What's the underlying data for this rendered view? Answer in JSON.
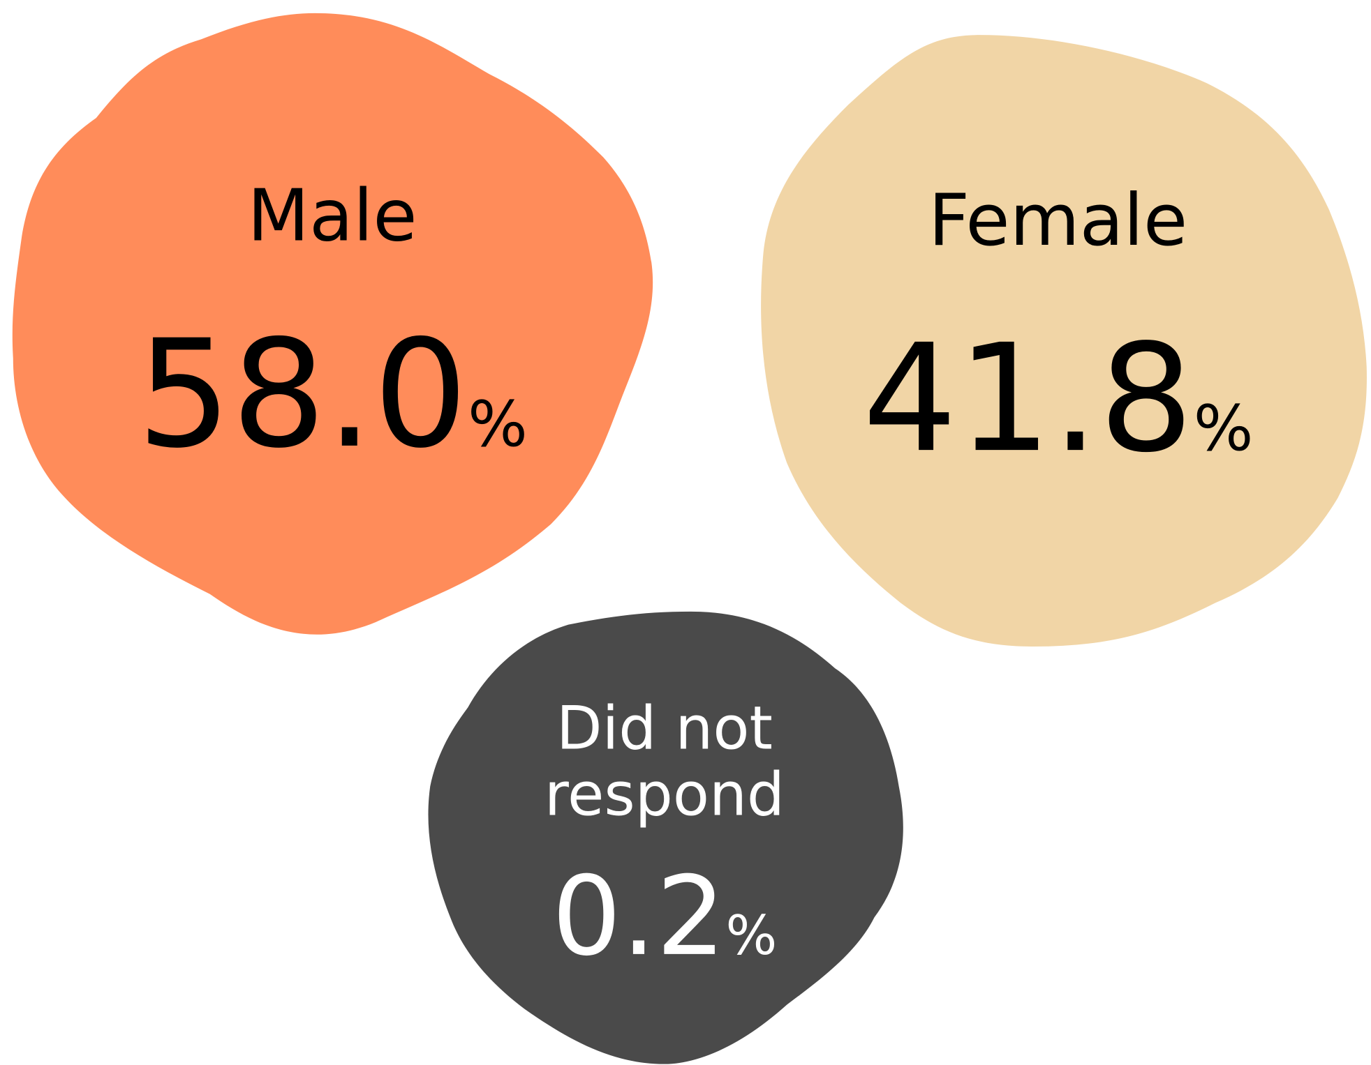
{
  "items": [
    {
      "label": [
        "Male"
      ],
      "value": "58.0",
      "unit": "%",
      "color": "#ff8c5a",
      "text_color": "#000000"
    },
    {
      "label": [
        "Female"
      ],
      "value": "41.8",
      "unit": "%",
      "color": "#f1d5a6",
      "text_color": "#000000"
    },
    {
      "label": [
        "Did not",
        "respond"
      ],
      "value": "0.2",
      "unit": "%",
      "color": "#4a4a4a",
      "text_color": "#ffffff"
    }
  ]
}
